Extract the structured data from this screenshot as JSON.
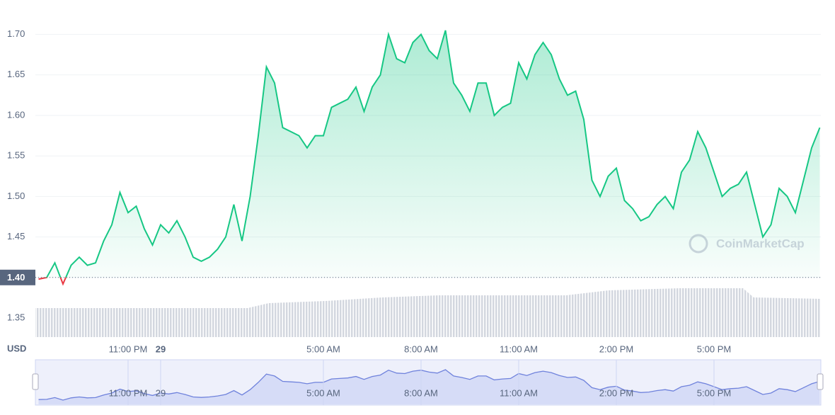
{
  "chart_data": {
    "type": "line",
    "y_label": "USD",
    "watermark": "CoinMarketCap",
    "categories": [
      null,
      null,
      null,
      null,
      null,
      null,
      null,
      null,
      null,
      null,
      null,
      "11:00 PM",
      null,
      null,
      null,
      "29",
      null,
      null,
      null,
      null,
      null,
      null,
      null,
      null,
      null,
      null,
      null,
      null,
      null,
      null,
      null,
      null,
      null,
      null,
      null,
      "5:00 AM",
      null,
      null,
      null,
      null,
      null,
      null,
      null,
      null,
      null,
      null,
      null,
      "8:00 AM",
      null,
      null,
      null,
      null,
      null,
      null,
      null,
      null,
      null,
      null,
      null,
      "11:00 AM",
      null,
      null,
      null,
      null,
      null,
      null,
      null,
      null,
      null,
      null,
      null,
      "2:00 PM",
      null,
      null,
      null,
      null,
      null,
      null,
      null,
      null,
      null,
      null,
      null,
      "5:00 PM",
      null,
      null,
      null,
      null,
      null,
      null,
      null,
      null,
      null,
      null,
      null,
      null,
      null
    ],
    "values": [
      1.398,
      1.4,
      1.418,
      1.392,
      1.415,
      1.425,
      1.415,
      1.418,
      1.445,
      1.465,
      1.505,
      1.48,
      1.488,
      1.46,
      1.44,
      1.465,
      1.455,
      1.47,
      1.45,
      1.425,
      1.42,
      1.425,
      1.435,
      1.45,
      1.49,
      1.445,
      1.5,
      1.575,
      1.66,
      1.64,
      1.585,
      1.58,
      1.575,
      1.56,
      1.575,
      1.575,
      1.61,
      1.615,
      1.62,
      1.635,
      1.605,
      1.635,
      1.65,
      1.7,
      1.67,
      1.665,
      1.69,
      1.7,
      1.68,
      1.67,
      1.705,
      1.64,
      1.625,
      1.605,
      1.64,
      1.64,
      1.6,
      1.61,
      1.615,
      1.665,
      1.645,
      1.675,
      1.69,
      1.675,
      1.645,
      1.625,
      1.63,
      1.595,
      1.52,
      1.5,
      1.525,
      1.535,
      1.495,
      1.485,
      1.47,
      1.475,
      1.49,
      1.5,
      1.485,
      1.53,
      1.545,
      1.58,
      1.56,
      1.53,
      1.5,
      1.51,
      1.515,
      1.53,
      1.49,
      1.45,
      1.465,
      1.51,
      1.5,
      1.48,
      1.52,
      1.56,
      1.585
    ],
    "baseline": 1.4,
    "up_color": "#16c784",
    "down_color": "#ea3943",
    "navigator_color": "#6f82dc",
    "ylim": [
      1.35,
      1.725
    ],
    "yticks": [
      1.35,
      {
        "value": 1.4,
        "label": "1.40"
      },
      1.45,
      {
        "value": 1.5,
        "label": "1.50"
      },
      1.55,
      {
        "value": 1.6,
        "label": "1.60"
      },
      1.65,
      {
        "value": 1.7,
        "label": "1.70"
      }
    ],
    "grid": true
  }
}
